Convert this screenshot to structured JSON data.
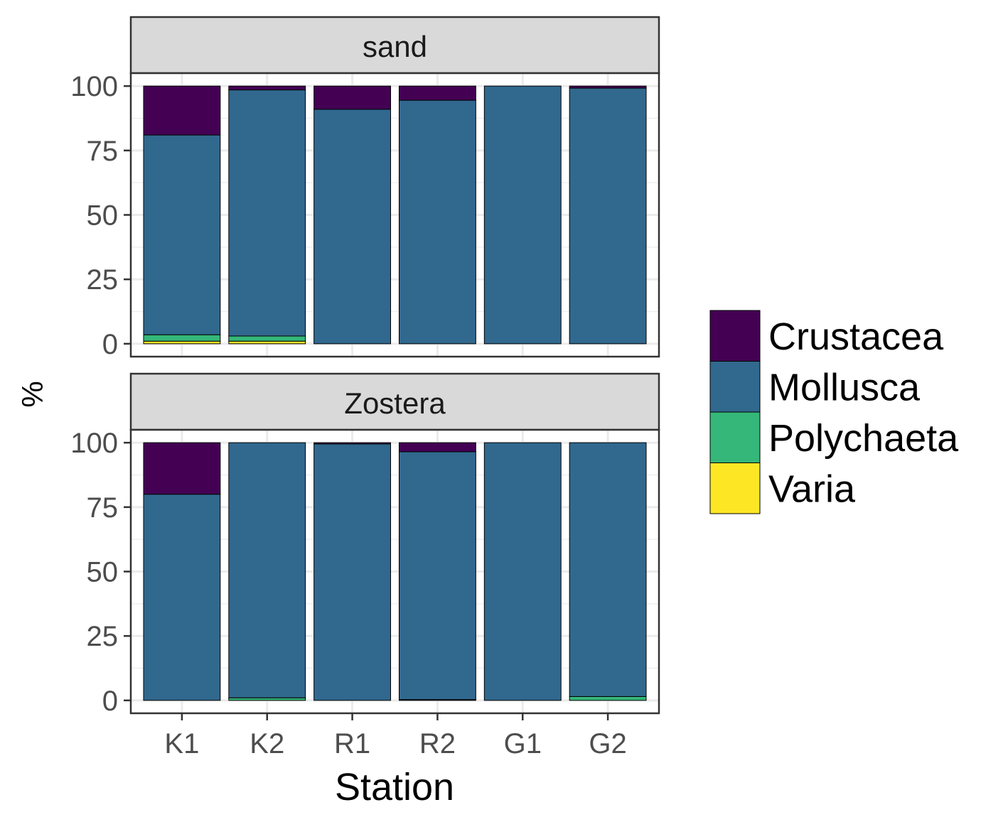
{
  "chart_data": {
    "type": "bar",
    "stacked": true,
    "xlabel": "Station",
    "ylabel": "%",
    "ylim": [
      0,
      100
    ],
    "yticks": [
      0,
      25,
      50,
      75,
      100
    ],
    "categories": [
      "K1",
      "K2",
      "R1",
      "R2",
      "G1",
      "G2"
    ],
    "grid": true,
    "legend_position": "right",
    "series_colors": {
      "Crustacea": "#440154",
      "Mollusca": "#31688e",
      "Polychaeta": "#35b779",
      "Varia": "#fde725"
    },
    "legend": [
      "Crustacea",
      "Mollusca",
      "Polychaeta",
      "Varia"
    ],
    "panels": [
      {
        "label": "sand",
        "series": [
          {
            "name": "Varia",
            "values": [
              1,
              1,
              0,
              0,
              0,
              0
            ]
          },
          {
            "name": "Polychaeta",
            "values": [
              2.5,
              2,
              0,
              0,
              0,
              0
            ]
          },
          {
            "name": "Mollusca",
            "values": [
              77.5,
              95.5,
              91,
              94.5,
              100,
              99.2
            ]
          },
          {
            "name": "Crustacea",
            "values": [
              19,
              1.5,
              9,
              5.5,
              0,
              0.8
            ]
          }
        ]
      },
      {
        "label": "Zostera",
        "series": [
          {
            "name": "Varia",
            "values": [
              0,
              0,
              0,
              0,
              0,
              0
            ]
          },
          {
            "name": "Polychaeta",
            "values": [
              0,
              1,
              0,
              0.3,
              0,
              1.5
            ]
          },
          {
            "name": "Mollusca",
            "values": [
              80,
              99,
              99.5,
              96.2,
              100,
              98.5
            ]
          },
          {
            "name": "Crustacea",
            "values": [
              20,
              0,
              0.5,
              3.5,
              0,
              0
            ]
          }
        ]
      }
    ]
  }
}
